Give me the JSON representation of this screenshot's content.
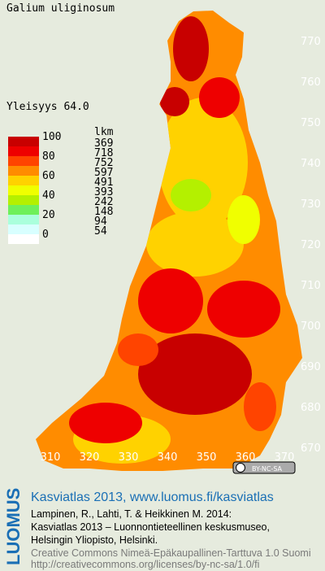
{
  "title": "Galium uliginosum",
  "frequency": "Yleisyys  64.0",
  "legend": {
    "header": "lkm",
    "scale_labels": [
      "100",
      "80",
      "60",
      "40",
      "20",
      "0"
    ],
    "colors": [
      "#c80000",
      "#ee0000",
      "#ff4400",
      "#ff8c00",
      "#ffd200",
      "#f0ff00",
      "#b4f000",
      "#6ef05a",
      "#aaffdc",
      "#d8ffff",
      "#ffffff"
    ],
    "counts": [
      "369",
      "718",
      "752",
      "597",
      "491",
      "393",
      "242",
      "148",
      "94",
      "54"
    ]
  },
  "axes": {
    "x_labels": [
      "310",
      "320",
      "330",
      "340",
      "350",
      "360",
      "370"
    ],
    "y_labels": [
      "770",
      "760",
      "750",
      "740",
      "730",
      "720",
      "710",
      "700",
      "690",
      "680",
      "670"
    ]
  },
  "license_badge": "BY-NC-SA",
  "footer": {
    "brand": "LUOMUS",
    "headline": "Kasviatlas 2013, www.luomus.fi/kasviatlas",
    "citation": [
      "Lampinen, R., Lahti, T. & Heikkinen M. 2014:",
      "Kasviatlas 2013 – Luonnontieteellinen keskusmuseo,",
      "Helsingin Yliopisto, Helsinki."
    ],
    "license": [
      "Creative Commons Nimeä-Epäkaupallinen-Tarttuva 1.0 Suomi",
      "http://creativecommons.org/licenses/by-nc-sa/1.0/fi"
    ]
  }
}
